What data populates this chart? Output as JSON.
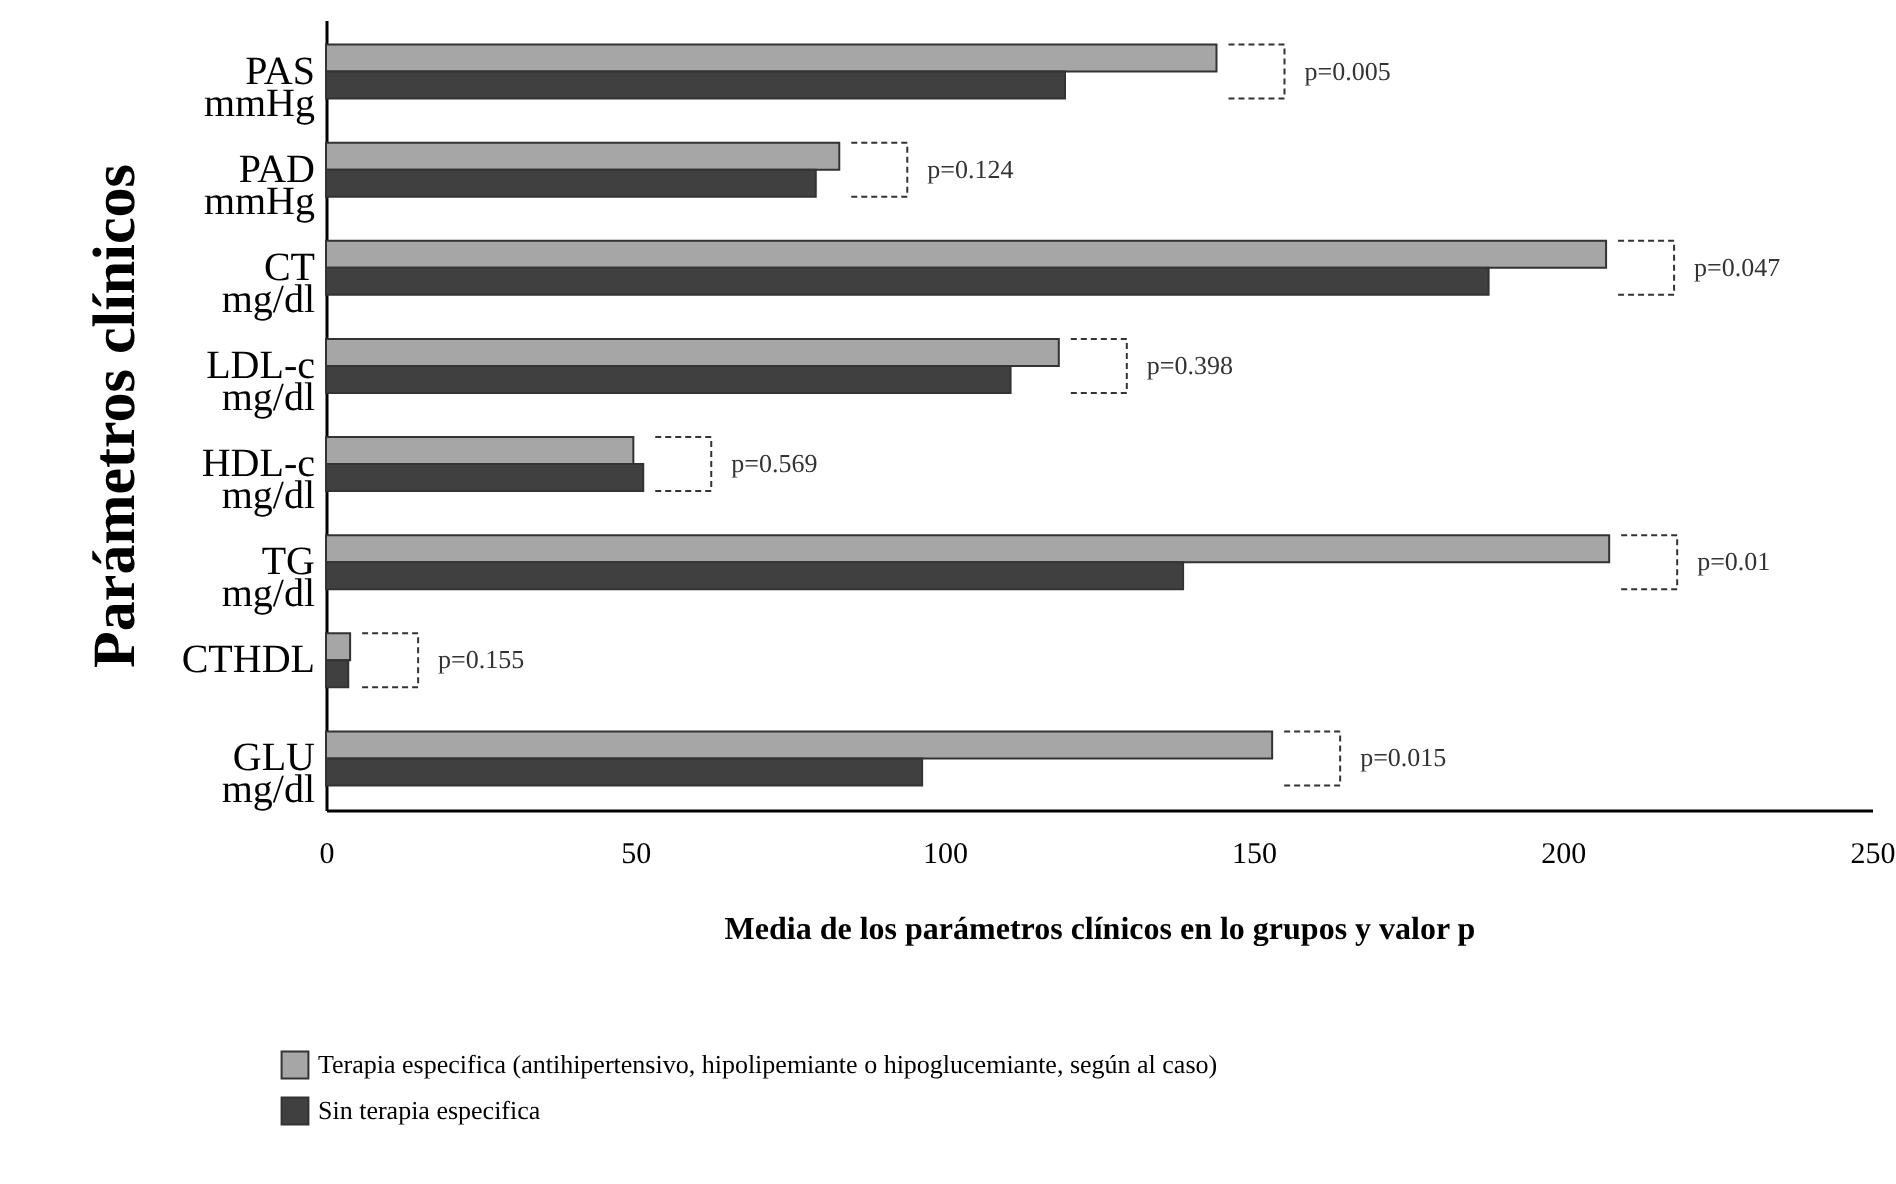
{
  "chart_data": {
    "type": "bar",
    "orientation": "horizontal",
    "xlabel": "Media de los parámetros clínicos en lo grupos y valor p",
    "ylabel": "Parámetros clínicos",
    "categories": [
      "PAS\nmmHg",
      "PAD\nmmHg",
      "CT\nmg/dl",
      "LDL-c\nmg/dl",
      "HDL-c\nmg/dl",
      "TG\nmg/dl",
      "CTHDL",
      "GLU\nmg/dl"
    ],
    "series": [
      {
        "name": "Terapia especifica (antihipertensivo, hipolipemiante o hipoglucemiante, según al caso)",
        "color": "#a6a6a6",
        "values": [
          144,
          83,
          207,
          118.5,
          49.7,
          207.5,
          3.9,
          153
        ]
      },
      {
        "name": "Sin terapia especifica",
        "color": "#404040",
        "values": [
          119.5,
          79.2,
          188,
          110.7,
          51.3,
          138.6,
          3.6,
          96.4
        ]
      }
    ],
    "xlim": [
      0,
      250
    ],
    "xticks": [
      0,
      50,
      100,
      150,
      200,
      250
    ],
    "grid": false,
    "legend": "bottom",
    "annotations": [
      "p=0.005",
      "p=0.124",
      "p=0.047",
      "p=0.398",
      "p=0.569",
      "p=0.01",
      "p=0.155",
      "p=0.015"
    ]
  }
}
